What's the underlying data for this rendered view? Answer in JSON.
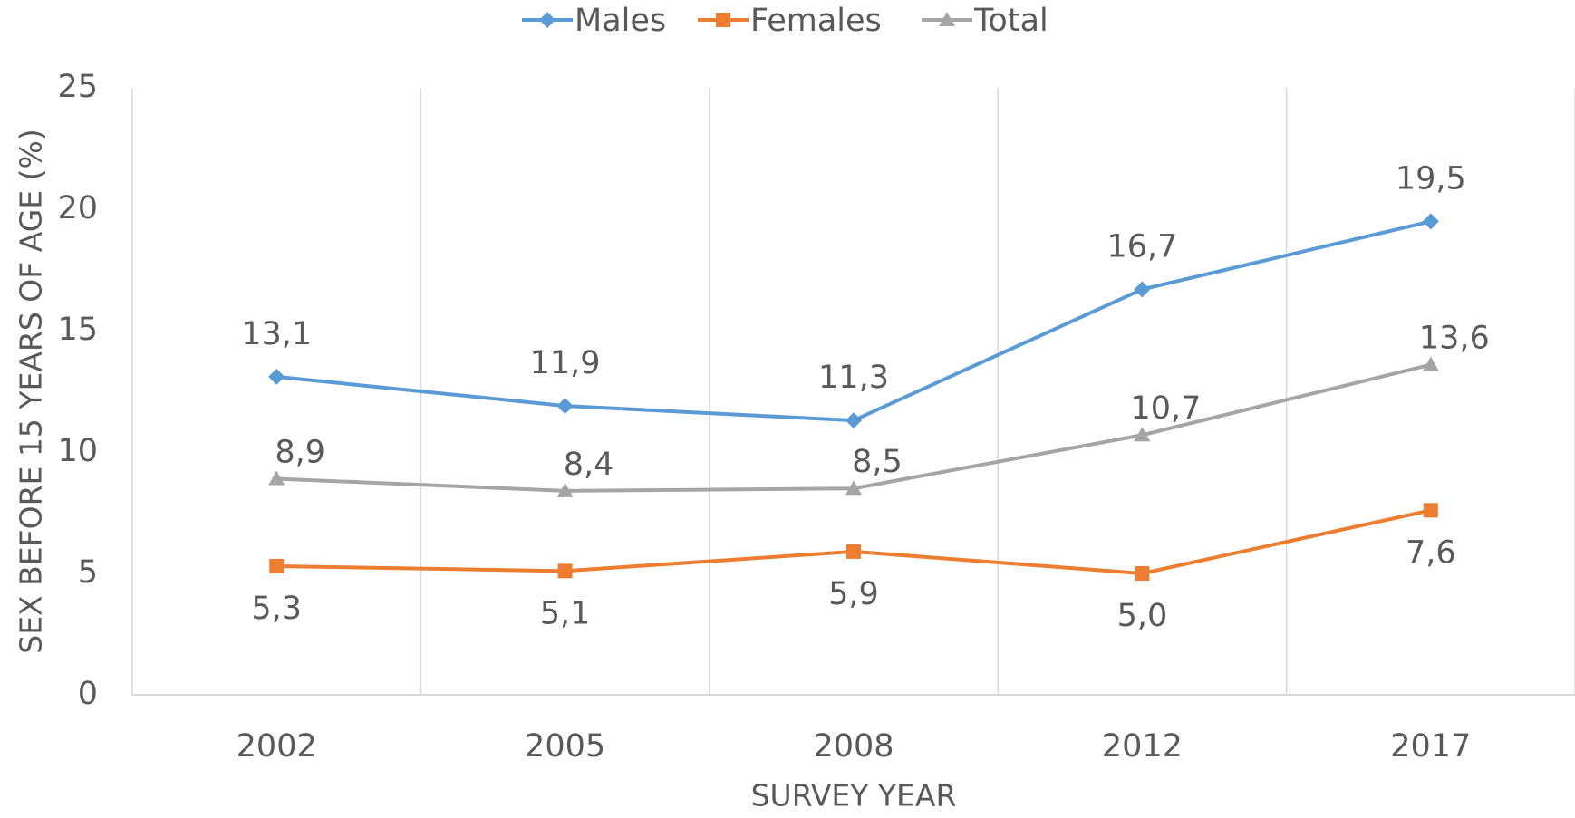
{
  "chart_data": {
    "type": "line",
    "x_label": "SURVEY YEAR",
    "y_label": "SEX BEFORE 15 YEARS OF AGE (%)",
    "categories": [
      "2002",
      "2005",
      "2008",
      "2012",
      "2017"
    ],
    "series": [
      {
        "name": "Males",
        "color": "#5b9bd5",
        "marker": "diamond",
        "values": [
          13.1,
          11.9,
          11.3,
          16.7,
          19.5
        ],
        "value_labels": [
          "13,1",
          "11,9",
          "11,3",
          "16,7",
          "19,5"
        ]
      },
      {
        "name": "Females",
        "color": "#ed7d31",
        "marker": "square",
        "values": [
          5.3,
          5.1,
          5.9,
          5.0,
          7.6
        ],
        "value_labels": [
          "5,3",
          "5,1",
          "5,9",
          "5,0",
          "7,6"
        ]
      },
      {
        "name": "Total",
        "color": "#a5a5a5",
        "marker": "triangle",
        "values": [
          8.9,
          8.4,
          8.5,
          10.7,
          13.6
        ],
        "value_labels": [
          "8,9",
          "8,4",
          "8,5",
          "10,7",
          "13,6"
        ]
      }
    ],
    "ylim": [
      0,
      25
    ],
    "yticks": [
      0,
      5,
      10,
      15,
      20,
      25
    ],
    "grid": "x",
    "legend": "top"
  }
}
